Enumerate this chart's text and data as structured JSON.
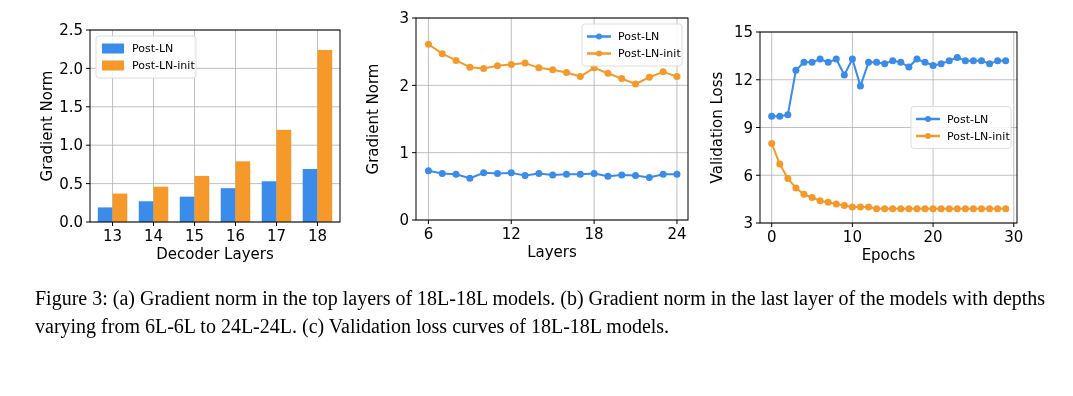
{
  "chart_data": [
    {
      "type": "bar",
      "xlabel": "Decoder Layers",
      "ylabel": "Gradient Norm",
      "categories": [
        "13",
        "14",
        "15",
        "16",
        "17",
        "18"
      ],
      "series": [
        {
          "name": "Post-LN",
          "color": "#3b8bea",
          "values": [
            0.19,
            0.27,
            0.33,
            0.44,
            0.53,
            0.69
          ]
        },
        {
          "name": "Post-LN-init",
          "color": "#f59a2a",
          "values": [
            0.37,
            0.46,
            0.6,
            0.79,
            1.2,
            2.24
          ]
        }
      ],
      "ylim": [
        0,
        2.5
      ],
      "yticks": [
        {
          "value": 0,
          "label": "0.0"
        },
        {
          "value": 0.5,
          "label": "0.5"
        },
        {
          "value": 1,
          "label": "1.0"
        },
        {
          "value": 1.5,
          "label": "1.5"
        },
        {
          "value": 2,
          "label": "2.0"
        },
        {
          "value": 2.5,
          "label": "2.5"
        }
      ],
      "grid": true,
      "legend": "top left",
      "annotations": [
        "Figure 3: (a) Gradient norm in the top layers of 18L-18L models. (b) Gradient norm in the last layer of the models with depths varying from 6L-6L to 24L-24L. (c) Validation loss curves of 18L-18L models."
      ]
    },
    {
      "type": "line",
      "xlabel": "Layers",
      "ylabel": "Gradient Norm",
      "x": [
        6,
        7,
        8,
        9,
        10,
        11,
        12,
        13,
        14,
        15,
        16,
        17,
        18,
        19,
        20,
        21,
        22,
        23,
        24
      ],
      "series": [
        {
          "name": "Post-LN",
          "color": "#3b8bea",
          "values": [
            0.73,
            0.69,
            0.68,
            0.62,
            0.7,
            0.69,
            0.7,
            0.66,
            0.69,
            0.67,
            0.68,
            0.68,
            0.69,
            0.65,
            0.67,
            0.66,
            0.63,
            0.68,
            0.68
          ]
        },
        {
          "name": "Post-LN-init",
          "color": "#f59a2a",
          "values": [
            2.61,
            2.47,
            2.37,
            2.27,
            2.25,
            2.29,
            2.31,
            2.33,
            2.26,
            2.23,
            2.19,
            2.13,
            2.26,
            2.18,
            2.1,
            2.02,
            2.12,
            2.2,
            2.13
          ]
        }
      ],
      "xlim": [
        5.1,
        24.8
      ],
      "xticks": [
        6,
        12,
        18,
        24
      ],
      "ylim": [
        0,
        3
      ],
      "yticks": [
        0,
        1,
        2,
        3
      ],
      "grid": true,
      "legend": "top right",
      "marker": "circle"
    },
    {
      "type": "line",
      "xlabel": "Epochs",
      "ylabel": "Validation Loss",
      "x": [
        0,
        1,
        2,
        3,
        4,
        5,
        6,
        7,
        8,
        9,
        10,
        11,
        12,
        13,
        14,
        15,
        16,
        17,
        18,
        19,
        20,
        21,
        22,
        23,
        24,
        25,
        26,
        27,
        28,
        29
      ],
      "series": [
        {
          "name": "Post-LN",
          "color": "#3b8bea",
          "values": [
            9.7,
            9.7,
            9.8,
            12.6,
            13.1,
            13.1,
            13.3,
            13.1,
            13.3,
            12.3,
            13.3,
            11.6,
            13.1,
            13.1,
            13.0,
            13.2,
            13.1,
            12.8,
            13.3,
            13.1,
            12.9,
            13.0,
            13.2,
            13.4,
            13.2,
            13.2,
            13.2,
            13.0,
            13.2,
            13.2
          ]
        },
        {
          "name": "Post-LN-init",
          "color": "#f59a2a",
          "values": [
            8.0,
            6.7,
            5.8,
            5.2,
            4.8,
            4.6,
            4.4,
            4.3,
            4.2,
            4.1,
            4.0,
            4.0,
            4.0,
            3.9,
            3.9,
            3.9,
            3.9,
            3.9,
            3.9,
            3.9,
            3.9,
            3.9,
            3.9,
            3.9,
            3.9,
            3.9,
            3.9,
            3.9,
            3.9,
            3.9
          ]
        }
      ],
      "xlim": [
        -1.45,
        30.4
      ],
      "xticks": [
        0,
        10,
        20,
        30
      ],
      "ylim": [
        3,
        15
      ],
      "yticks": [
        3,
        6,
        9,
        12,
        15
      ],
      "grid": true,
      "legend": "right",
      "marker": "circle"
    }
  ]
}
